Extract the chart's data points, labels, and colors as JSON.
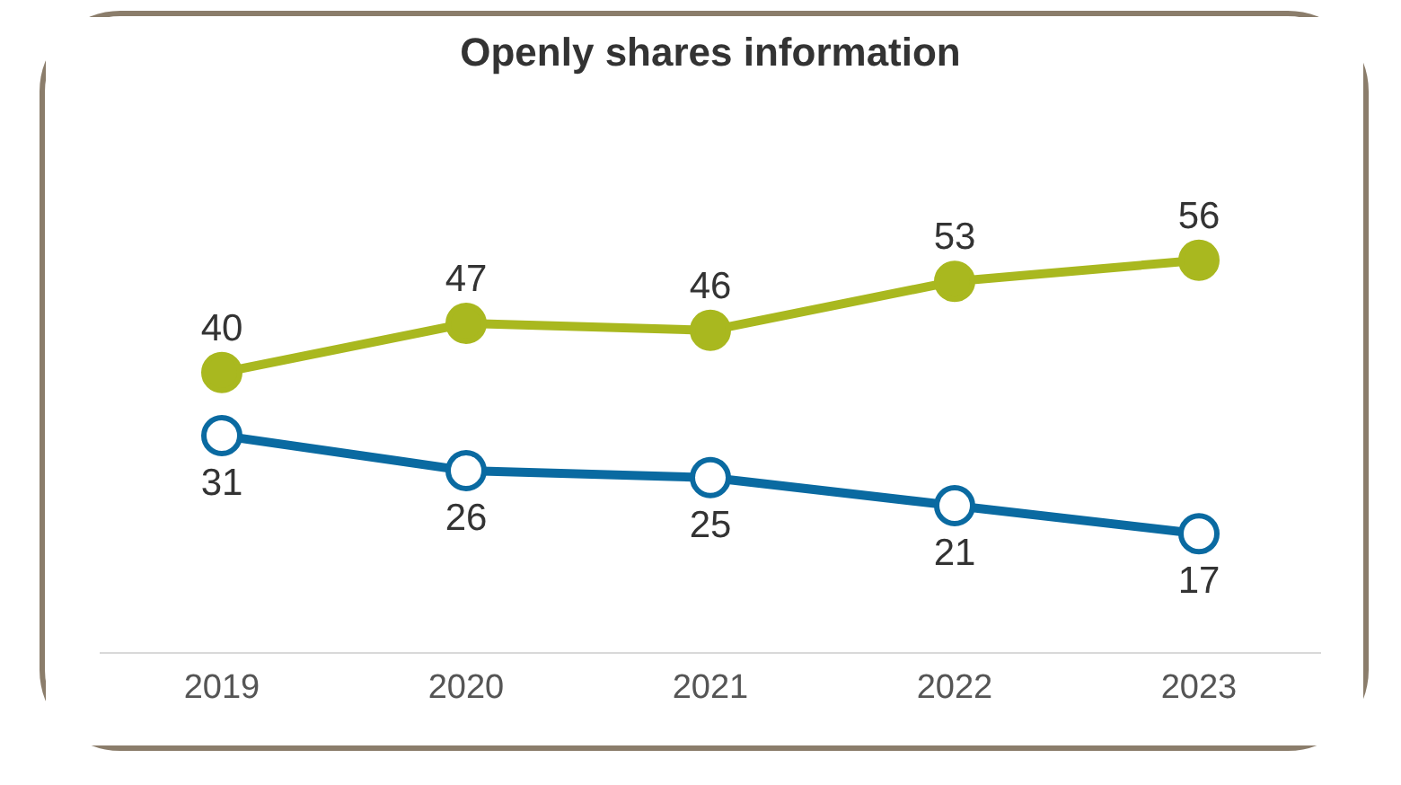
{
  "chart_data": {
    "type": "line",
    "title": "Openly shares information",
    "categories": [
      "2019",
      "2020",
      "2021",
      "2022",
      "2023"
    ],
    "series": [
      {
        "color": "#a9b81f",
        "values": [
          40,
          47,
          46,
          53,
          56
        ]
      },
      {
        "color": "#0a6aa1",
        "values": [
          31,
          26,
          25,
          21,
          17
        ]
      }
    ],
    "data_labels": true,
    "marker": "circle"
  }
}
